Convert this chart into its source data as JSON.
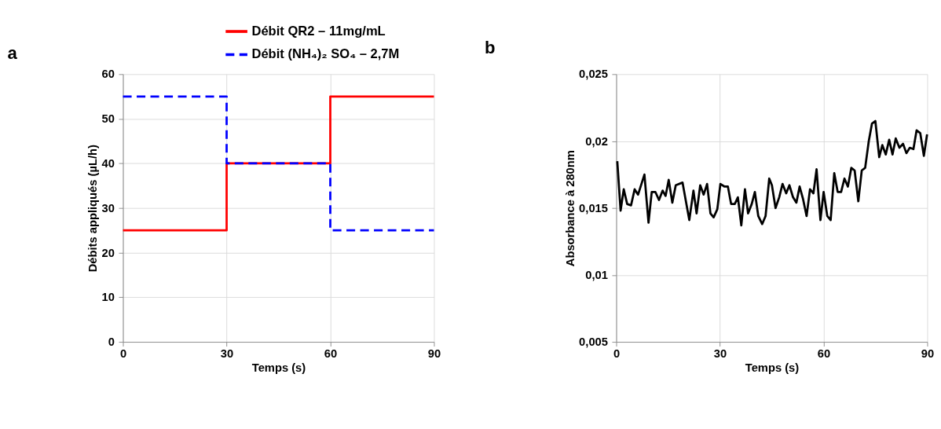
{
  "chart_data": [
    {
      "type": "line",
      "title": "a",
      "xlabel": "Temps (s)",
      "ylabel": "Débits appliqués (µL/h)",
      "xlim": [
        0,
        90
      ],
      "xticks": [
        0,
        30,
        60,
        90
      ],
      "ylim": [
        0,
        60
      ],
      "yticks": [
        0,
        10,
        20,
        30,
        40,
        50,
        60
      ],
      "grid": true,
      "legend": "top right",
      "series": [
        {
          "name": "Débit QR2 – 11mg/mL",
          "color": "#ff0000",
          "line_style": "solid",
          "x": [
            0,
            30,
            30,
            60,
            60,
            90
          ],
          "values": [
            25,
            25,
            40,
            40,
            55,
            55
          ]
        },
        {
          "name": "Débit (NH₄)₂ SO₄ – 2,7M",
          "color": "#0000ff",
          "line_style": "dashed",
          "x": [
            0,
            30,
            30,
            60,
            60,
            90
          ],
          "values": [
            55,
            55,
            40,
            40,
            25,
            25
          ]
        }
      ]
    },
    {
      "type": "line",
      "title": "b",
      "xlabel": "Temps (s)",
      "ylabel": "Absorbance à 280nm",
      "xlim": [
        0,
        90
      ],
      "xticks": [
        0,
        30,
        60,
        90
      ],
      "ylim": [
        0.005,
        0.025
      ],
      "yticks": [
        {
          "value": 0.005,
          "label": "0,005"
        },
        {
          "value": 0.01,
          "label": "0,01"
        },
        {
          "value": 0.015,
          "label": "0,015"
        },
        {
          "value": 0.02,
          "label": "0,02"
        },
        {
          "value": 0.025,
          "label": "0,025"
        }
      ],
      "grid": true,
      "series": [
        {
          "color": "#000000",
          "line_style": "solid",
          "x": [
            0.3,
            1.26,
            2.17,
            3.16,
            4.28,
            5.33,
            6.32,
            8.16,
            9.34,
            10.27,
            11.32,
            12.37,
            13.43,
            14.27,
            15.18,
            16.23,
            17.22,
            19.18,
            21.14,
            22.34,
            23.25,
            24.3,
            25.3,
            26.29,
            27.26,
            28.18,
            29.24,
            30.14,
            31.34,
            32.31,
            33.24,
            34.3,
            35.2,
            36.19,
            37.25,
            38.15,
            39.21,
            40.11,
            41.1,
            42.22,
            43.21,
            44.27,
            45.05,
            46.1,
            47.16,
            48.12,
            49.18,
            50.11,
            51.16,
            52.13,
            53.06,
            54.03,
            55.08,
            56.07,
            57.06,
            57.97,
            59.09,
            60.01,
            61.07,
            62.04,
            63.09,
            64.08,
            65.07,
            66.04,
            67.03,
            68.02,
            68.99,
            70.05,
            71.04,
            72.03,
            73.08,
            73.99,
            74.98,
            76.1,
            77.0,
            77.99,
            78.98,
            79.95,
            80.88,
            81.94,
            82.99,
            83.96,
            84.95,
            86.0,
            86.91,
            87.97,
            89.02,
            89.95
          ],
          "values": [
            0.0185,
            0.0148,
            0.0164,
            0.0153,
            0.0152,
            0.0164,
            0.016,
            0.0175,
            0.0139,
            0.0162,
            0.0162,
            0.0156,
            0.0163,
            0.0159,
            0.0171,
            0.0154,
            0.0167,
            0.0169,
            0.0141,
            0.0163,
            0.0146,
            0.0167,
            0.016,
            0.0168,
            0.0146,
            0.0143,
            0.0149,
            0.0168,
            0.0166,
            0.0166,
            0.0153,
            0.0153,
            0.0158,
            0.0137,
            0.0164,
            0.0146,
            0.0153,
            0.0162,
            0.0144,
            0.0138,
            0.0144,
            0.0172,
            0.0167,
            0.015,
            0.0158,
            0.0168,
            0.0161,
            0.0167,
            0.0158,
            0.0154,
            0.0166,
            0.0157,
            0.0144,
            0.0164,
            0.0161,
            0.0179,
            0.0141,
            0.0162,
            0.0144,
            0.0141,
            0.0176,
            0.0162,
            0.0162,
            0.0172,
            0.0166,
            0.018,
            0.0178,
            0.0155,
            0.0178,
            0.018,
            0.02,
            0.0213,
            0.0215,
            0.0188,
            0.0197,
            0.019,
            0.0201,
            0.019,
            0.0202,
            0.0195,
            0.0198,
            0.0191,
            0.0195,
            0.0194,
            0.0208,
            0.0206,
            0.0189,
            0.0205
          ]
        }
      ]
    }
  ]
}
